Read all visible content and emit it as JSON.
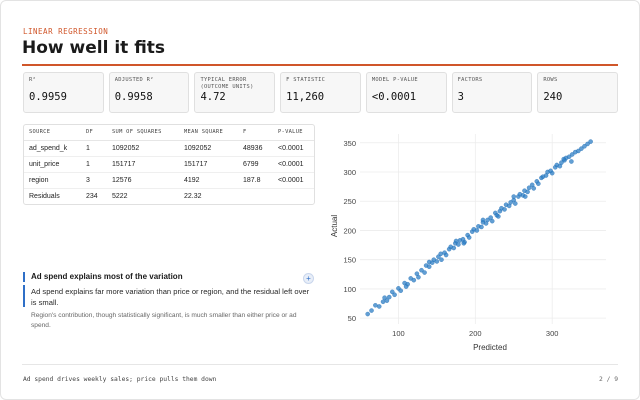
{
  "header": {
    "eyebrow": "LINEAR REGRESSION",
    "title": "How well it fits"
  },
  "kpis": [
    {
      "label": "R²",
      "value": "0.9959"
    },
    {
      "label": "ADJUSTED R²",
      "value": "0.9958"
    },
    {
      "label": "TYPICAL ERROR (OUTCOME UNITS)",
      "value": "4.72"
    },
    {
      "label": "F STATISTIC",
      "value": "11,260"
    },
    {
      "label": "MODEL P-VALUE",
      "value": "<0.0001"
    },
    {
      "label": "FACTORS",
      "value": "3"
    },
    {
      "label": "ROWS",
      "value": "240"
    }
  ],
  "anova": {
    "columns": [
      "SOURCE",
      "DF",
      "SUM OF SQUARES",
      "MEAN SQUARE",
      "F",
      "P-VALUE"
    ],
    "rows": [
      [
        "ad_spend_k",
        "1",
        "1092052",
        "1092052",
        "48936",
        "<0.0001"
      ],
      [
        "unit_price",
        "1",
        "151717",
        "151717",
        "6799",
        "<0.0001"
      ],
      [
        "region",
        "3",
        "12576",
        "4192",
        "187.8",
        "<0.0001"
      ],
      [
        "Residuals",
        "234",
        "5222",
        "22.32",
        "",
        ""
      ]
    ]
  },
  "note": {
    "title": "Ad spend explains most of the variation",
    "body": "Ad spend explains far more variation than price or region, and the residual left over is small.",
    "sub": "Region's contribution, though statistically significant, is much smaller than either price or ad spend.",
    "expand_label": "+"
  },
  "chart_data": {
    "type": "scatter",
    "xlabel": "Predicted",
    "ylabel": "Actual",
    "xticks": [
      100,
      200,
      300
    ],
    "yticks": [
      50,
      100,
      150,
      200,
      250,
      300,
      350
    ],
    "xlim": [
      50,
      370
    ],
    "ylim": [
      40,
      365
    ],
    "grid": true,
    "points": [
      [
        60,
        57
      ],
      [
        65,
        63
      ],
      [
        70,
        72
      ],
      [
        75,
        70
      ],
      [
        80,
        78
      ],
      [
        82,
        85
      ],
      [
        88,
        86
      ],
      [
        92,
        95
      ],
      [
        95,
        90
      ],
      [
        100,
        101
      ],
      [
        103,
        97
      ],
      [
        108,
        110
      ],
      [
        112,
        108
      ],
      [
        116,
        118
      ],
      [
        120,
        115
      ],
      [
        124,
        126
      ],
      [
        126,
        120
      ],
      [
        130,
        132
      ],
      [
        134,
        128
      ],
      [
        136,
        140
      ],
      [
        140,
        138
      ],
      [
        144,
        145
      ],
      [
        146,
        150
      ],
      [
        150,
        147
      ],
      [
        152,
        155
      ],
      [
        156,
        150
      ],
      [
        160,
        162
      ],
      [
        162,
        158
      ],
      [
        166,
        168
      ],
      [
        168,
        172
      ],
      [
        172,
        170
      ],
      [
        174,
        178
      ],
      [
        178,
        176
      ],
      [
        180,
        183
      ],
      [
        184,
        185
      ],
      [
        186,
        180
      ],
      [
        190,
        192
      ],
      [
        192,
        188
      ],
      [
        196,
        198
      ],
      [
        198,
        202
      ],
      [
        202,
        200
      ],
      [
        204,
        207
      ],
      [
        208,
        206
      ],
      [
        210,
        214
      ],
      [
        214,
        212
      ],
      [
        216,
        218
      ],
      [
        220,
        222
      ],
      [
        222,
        216
      ],
      [
        226,
        230
      ],
      [
        228,
        226
      ],
      [
        232,
        233
      ],
      [
        234,
        238
      ],
      [
        238,
        236
      ],
      [
        240,
        244
      ],
      [
        244,
        242
      ],
      [
        246,
        248
      ],
      [
        250,
        252
      ],
      [
        252,
        246
      ],
      [
        256,
        258
      ],
      [
        258,
        262
      ],
      [
        262,
        260
      ],
      [
        264,
        268
      ],
      [
        268,
        266
      ],
      [
        270,
        273
      ],
      [
        274,
        278
      ],
      [
        276,
        272
      ],
      [
        280,
        284
      ],
      [
        282,
        280
      ],
      [
        286,
        290
      ],
      [
        288,
        292
      ],
      [
        292,
        294
      ],
      [
        294,
        300
      ],
      [
        298,
        302
      ],
      [
        300,
        298
      ],
      [
        304,
        308
      ],
      [
        306,
        312
      ],
      [
        310,
        310
      ],
      [
        312,
        316
      ],
      [
        316,
        320
      ],
      [
        318,
        324
      ],
      [
        322,
        326
      ],
      [
        326,
        330
      ],
      [
        330,
        334
      ],
      [
        334,
        336
      ],
      [
        338,
        340
      ],
      [
        342,
        344
      ],
      [
        346,
        348
      ],
      [
        350,
        352
      ],
      [
        325,
        318
      ],
      [
        315,
        322
      ],
      [
        250,
        258
      ],
      [
        265,
        258
      ],
      [
        185,
        178
      ],
      [
        175,
        182
      ],
      [
        140,
        146
      ],
      [
        155,
        160
      ],
      [
        110,
        104
      ],
      [
        85,
        80
      ],
      [
        230,
        224
      ],
      [
        210,
        218
      ]
    ]
  },
  "footer": {
    "left": "Ad spend drives weekly sales; price pulls them down",
    "page": "2 / 9"
  }
}
